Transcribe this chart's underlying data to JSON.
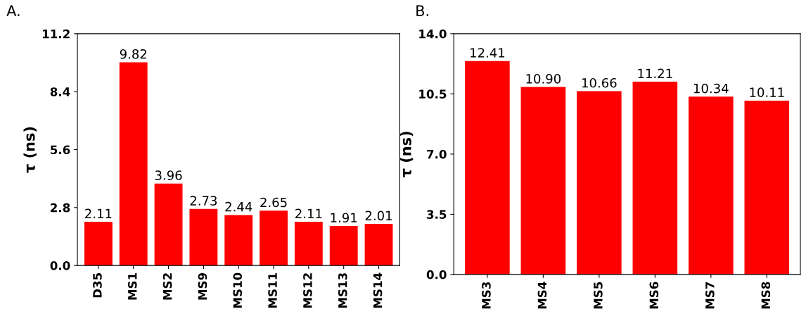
{
  "chart_data": [
    {
      "type": "bar",
      "title": "A.",
      "ylabel": "τ (ns)",
      "categories": [
        "D35",
        "MS1",
        "MS2",
        "MS9",
        "MS10",
        "MS11",
        "MS12",
        "MS13",
        "MS14"
      ],
      "values": [
        2.11,
        9.82,
        3.96,
        2.73,
        2.44,
        2.65,
        2.11,
        1.91,
        2.01
      ],
      "value_labels": [
        "2.11",
        "9.82",
        "3.96",
        "2.73",
        "2.44",
        "2.65",
        "2.11",
        "1.91",
        "2.01"
      ],
      "color": "#ff0000",
      "ylim": [
        0,
        11.2
      ],
      "yticks": [
        {
          "value": 0,
          "label": "0.0"
        },
        {
          "value": 2.8,
          "label": "2.8"
        },
        {
          "value": 5.6,
          "label": "5.6"
        },
        {
          "value": 8.4,
          "label": "8.4"
        },
        {
          "value": 11.2,
          "label": "11.2"
        }
      ],
      "grid": false,
      "legend": false
    },
    {
      "type": "bar",
      "title": "B.",
      "ylabel": "τ (ns)",
      "categories": [
        "MS3",
        "MS4",
        "MS5",
        "MS6",
        "MS7",
        "MS8"
      ],
      "values": [
        12.41,
        10.9,
        10.66,
        11.21,
        10.34,
        10.11
      ],
      "value_labels": [
        "12.41",
        "10.90",
        "10.66",
        "11.21",
        "10.34",
        "10.11"
      ],
      "color": "#ff0000",
      "ylim": [
        0,
        14.0
      ],
      "yticks": [
        {
          "value": 0,
          "label": "0.0"
        },
        {
          "value": 3.5,
          "label": "3.5"
        },
        {
          "value": 7.0,
          "label": "7.0"
        },
        {
          "value": 10.5,
          "label": "10.5"
        },
        {
          "value": 14.0,
          "label": "14.0"
        }
      ],
      "grid": false,
      "legend": false
    }
  ]
}
